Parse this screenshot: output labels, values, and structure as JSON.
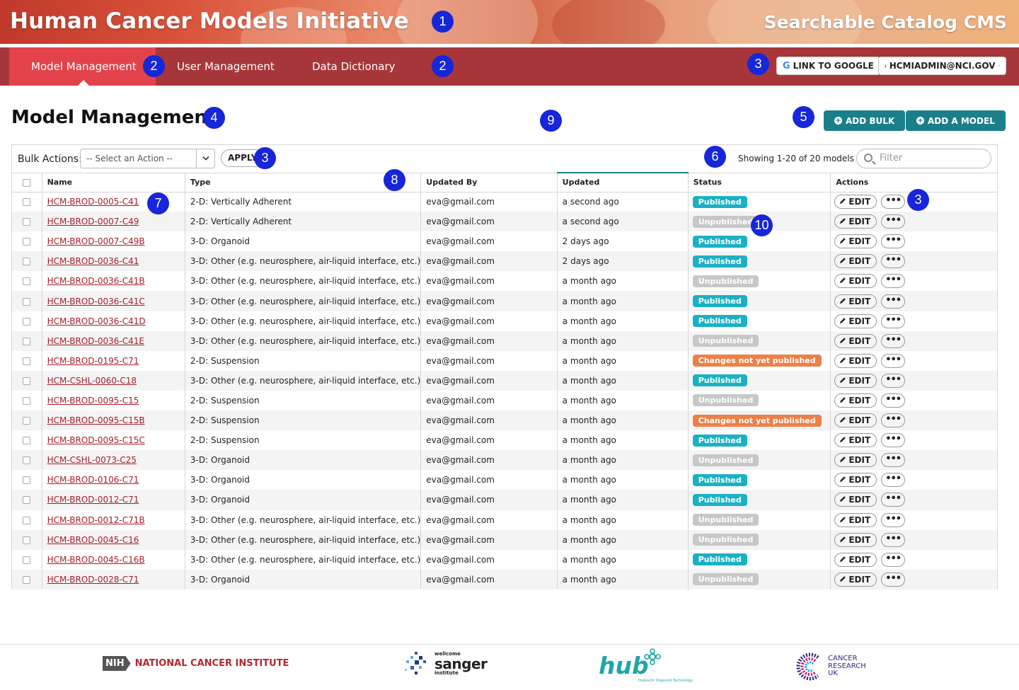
{
  "banner": {
    "title": "Human Cancer Models Initiative",
    "subtitle": "Searchable Catalog CMS"
  },
  "nav": {
    "tabs": [
      "Model Management",
      "User Management",
      "Data Dictionary"
    ],
    "google_button": "LINK TO GOOGLE",
    "user_button": "HCMIADMIN@NCI.GOV"
  },
  "callouts": [
    "1",
    "2",
    "2",
    "3",
    "4",
    "5",
    "6",
    "3",
    "7",
    "8",
    "9",
    "3",
    "10"
  ],
  "main": {
    "title": "Model Management",
    "add_bulk": "ADD BULK",
    "add_model": "ADD A MODEL"
  },
  "toolbar": {
    "bulk_label": "Bulk Actions:",
    "select_value": "-- Select an Action --",
    "apply": "APPLY",
    "showing": "Showing 1-20 of 20 models",
    "filter_placeholder": "Filter"
  },
  "table": {
    "columns": [
      "Name",
      "Type",
      "Updated By",
      "Updated",
      "Status",
      "Actions"
    ],
    "edit_label": "EDIT",
    "more_label": "•••",
    "rows": [
      {
        "name": "HCM-BROD-0005-C41",
        "type": "2-D: Vertically Adherent",
        "by": "eva@gmail.com",
        "updated": "a second ago",
        "status": "Published",
        "kind": "published"
      },
      {
        "name": "HCM-BROD-0007-C49",
        "type": "2-D: Vertically Adherent",
        "by": "eva@gmail.com",
        "updated": "a second ago",
        "status": "Unpublished",
        "kind": "unpublished"
      },
      {
        "name": "HCM-BROD-0007-C49B",
        "type": "3-D: Organoid",
        "by": "eva@gmail.com",
        "updated": "2 days ago",
        "status": "Published",
        "kind": "published"
      },
      {
        "name": "HCM-BROD-0036-C41",
        "type": "3-D: Other (e.g. neurosphere, air-liquid interface, etc.)",
        "by": "eva@gmail.com",
        "updated": "2 days ago",
        "status": "Published",
        "kind": "published"
      },
      {
        "name": "HCM-BROD-0036-C41B",
        "type": "3-D: Other (e.g. neurosphere, air-liquid interface, etc.)",
        "by": "eva@gmail.com",
        "updated": "a month ago",
        "status": "Unpublished",
        "kind": "unpublished"
      },
      {
        "name": "HCM-BROD-0036-C41C",
        "type": "3-D: Other (e.g. neurosphere, air-liquid interface, etc.)",
        "by": "eva@gmail.com",
        "updated": "a month ago",
        "status": "Published",
        "kind": "published"
      },
      {
        "name": "HCM-BROD-0036-C41D",
        "type": "3-D: Other (e.g. neurosphere, air-liquid interface, etc.)",
        "by": "eva@gmail.com",
        "updated": "a month ago",
        "status": "Published",
        "kind": "published"
      },
      {
        "name": "HCM-BROD-0036-C41E",
        "type": "3-D: Other (e.g. neurosphere, air-liquid interface, etc.)",
        "by": "eva@gmail.com",
        "updated": "a month ago",
        "status": "Unpublished",
        "kind": "unpublished"
      },
      {
        "name": "HCM-BROD-0195-C71",
        "type": "2-D: Suspension",
        "by": "eva@gmail.com",
        "updated": "a month ago",
        "status": "Changes not yet published",
        "kind": "changes"
      },
      {
        "name": "HCM-CSHL-0060-C18",
        "type": "3-D: Other (e.g. neurosphere, air-liquid interface, etc.)",
        "by": "eva@gmail.com",
        "updated": "a month ago",
        "status": "Published",
        "kind": "published"
      },
      {
        "name": "HCM-BROD-0095-C15",
        "type": "2-D: Suspension",
        "by": "eva@gmail.com",
        "updated": "a month ago",
        "status": "Unpublished",
        "kind": "unpublished"
      },
      {
        "name": "HCM-BROD-0095-C15B",
        "type": "2-D: Suspension",
        "by": "eva@gmail.com",
        "updated": "a month ago",
        "status": "Changes not yet published",
        "kind": "changes"
      },
      {
        "name": "HCM-BROD-0095-C15C",
        "type": "2-D: Suspension",
        "by": "eva@gmail.com",
        "updated": "a month ago",
        "status": "Published",
        "kind": "published"
      },
      {
        "name": "HCM-CSHL-0073-C25",
        "type": "3-D: Organoid",
        "by": "eva@gmail.com",
        "updated": "a month ago",
        "status": "Unpublished",
        "kind": "unpublished"
      },
      {
        "name": "HCM-BROD-0106-C71",
        "type": "3-D: Organoid",
        "by": "eva@gmail.com",
        "updated": "a month ago",
        "status": "Published",
        "kind": "published"
      },
      {
        "name": "HCM-BROD-0012-C71",
        "type": "3-D: Organoid",
        "by": "eva@gmail.com",
        "updated": "a month ago",
        "status": "Published",
        "kind": "published"
      },
      {
        "name": "HCM-BROD-0012-C71B",
        "type": "3-D: Other (e.g. neurosphere, air-liquid interface, etc.)",
        "by": "eva@gmail.com",
        "updated": "a month ago",
        "status": "Unpublished",
        "kind": "unpublished"
      },
      {
        "name": "HCM-BROD-0045-C16",
        "type": "3-D: Other (e.g. neurosphere, air-liquid interface, etc.)",
        "by": "eva@gmail.com",
        "updated": "a month ago",
        "status": "Unpublished",
        "kind": "unpublished"
      },
      {
        "name": "HCM-BROD-0045-C16B",
        "type": "3-D: Other (e.g. neurosphere, air-liquid interface, etc.)",
        "by": "eva@gmail.com",
        "updated": "a month ago",
        "status": "Published",
        "kind": "published"
      },
      {
        "name": "HCM-BROD-0028-C71",
        "type": "3-D: Organoid",
        "by": "eva@gmail.com",
        "updated": "a month ago",
        "status": "Unpublished",
        "kind": "unpublished"
      }
    ]
  },
  "footer": {
    "nci_badge": "NIH",
    "nci_text": "NATIONAL CANCER INSTITUTE",
    "sanger_top": "wellcome",
    "sanger_main": "sanger",
    "sanger_sub": "institute",
    "hub_main": "hub",
    "hub_sub": "Hubrecht Organoid Technology",
    "cruk_lines": [
      "CANCER",
      "RESEARCH",
      "UK"
    ]
  },
  "colors": {
    "nav": "#a7363a",
    "nav_active": "#e2434a",
    "accent": "#1b7f8a",
    "published": "#1ab1c4",
    "unpublished": "#c7c7c7",
    "changes": "#ec8046",
    "link": "#a71d2a",
    "callout": "#1626d8"
  }
}
